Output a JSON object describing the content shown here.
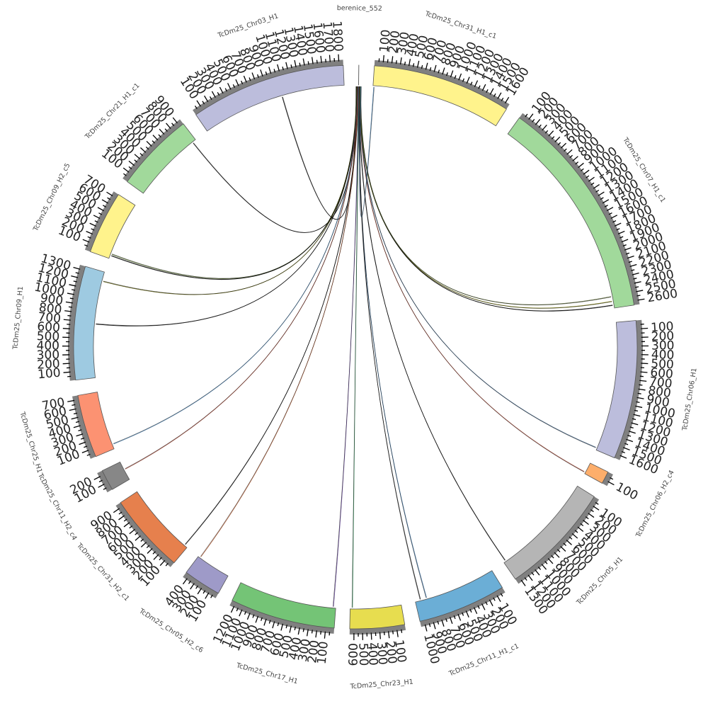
{
  "colors": {
    "tick": "#000000",
    "ring": "#808080",
    "link_default": "#000000"
  },
  "segments": [
    {
      "name": "berenice_552",
      "length": 1,
      "color": "#8da0cb"
    },
    {
      "name": "TcDm25_Chr31_H1_c1",
      "length": 1650,
      "color": "#fff38c"
    },
    {
      "name": "TcDm25_Chr07_H1_c1",
      "length": 2650,
      "color": "#a1d99b"
    },
    {
      "name": "TcDm25_Chr06_H1",
      "length": 1650,
      "color": "#bcbddc"
    },
    {
      "name": "TcDm25_Chr06_H2_c4",
      "length": 150,
      "color": "#fdae6b"
    },
    {
      "name": "TcDm25_Chr05_H1",
      "length": 1350,
      "color": "#b5b5b5"
    },
    {
      "name": "TcDm25_Chr11_H1_c1",
      "length": 1050,
      "color": "#6baed6"
    },
    {
      "name": "TcDm25_Chr23_H1",
      "length": 650,
      "color": "#e7dd4f"
    },
    {
      "name": "TcDm25_Chr17_H1",
      "length": 1250,
      "color": "#74c476"
    },
    {
      "name": "TcDm25_Chr05_H2_c6",
      "length": 450,
      "color": "#9e9ac8"
    },
    {
      "name": "TcDm25_Chr31_H2_c1",
      "length": 950,
      "color": "#e6804d"
    },
    {
      "name": "TcDm25_Chr11_H2_c4",
      "length": 250,
      "color": "#878787"
    },
    {
      "name": "TcDm25_Chr25_H1",
      "length": 750,
      "color": "#fc9272"
    },
    {
      "name": "TcDm25_Chr09_H1",
      "length": 1350,
      "color": "#9ecae1"
    },
    {
      "name": "TcDm25_Chr09_H2_c5",
      "length": 750,
      "color": "#fff38c"
    },
    {
      "name": "TcDm25_Chr21_H1_c1",
      "length": 950,
      "color": "#a1d99b"
    },
    {
      "name": "TcDm25_Chr03_H1",
      "length": 1850,
      "color": "#bcbddc"
    }
  ],
  "links": [
    {
      "target": "TcDm25_Chr03_H1",
      "pos": 1050,
      "color": "#000000"
    },
    {
      "target": "TcDm25_Chr21_H1_c1",
      "pos": 900,
      "color": "#000000"
    },
    {
      "target": "TcDm25_Chr09_H2_c5",
      "pos": 60,
      "color": "#556b2f"
    },
    {
      "target": "TcDm25_Chr09_H2_c5",
      "pos": 40,
      "color": "#000000"
    },
    {
      "target": "TcDm25_Chr09_H1",
      "pos": 1230,
      "color": "#4a4a00"
    },
    {
      "target": "TcDm25_Chr09_H1",
      "pos": 680,
      "color": "#000000"
    },
    {
      "target": "TcDm25_Chr25_H1",
      "pos": 60,
      "color": "#3a6d99"
    },
    {
      "target": "TcDm25_Chr11_H2_c4",
      "pos": 140,
      "color": "#8b3a2a"
    },
    {
      "target": "TcDm25_Chr31_H2_c1",
      "pos": 40,
      "color": "#000000"
    },
    {
      "target": "TcDm25_Chr05_H2_c6",
      "pos": 420,
      "color": "#a0522d"
    },
    {
      "target": "TcDm25_Chr17_H1",
      "pos": 30,
      "color": "#5a3d8a"
    },
    {
      "target": "TcDm25_Chr23_H1",
      "pos": 620,
      "color": "#2e7d4f"
    },
    {
      "target": "TcDm25_Chr11_H1_c1",
      "pos": 900,
      "color": "#2b5c8a"
    },
    {
      "target": "TcDm25_Chr11_H1_c1",
      "pos": 980,
      "color": "#1c1c1c"
    },
    {
      "target": "TcDm25_Chr05_H1",
      "pos": 1320,
      "color": "#000000"
    },
    {
      "target": "TcDm25_Chr06_H2_c4",
      "pos": 130,
      "color": "#8b3a2a"
    },
    {
      "target": "TcDm25_Chr06_H1",
      "pos": 1620,
      "color": "#2e4d6b"
    },
    {
      "target": "TcDm25_Chr07_H1_c1",
      "pos": 2560,
      "color": "#6b6b00"
    },
    {
      "target": "TcDm25_Chr07_H1_c1",
      "pos": 2610,
      "color": "#000000"
    },
    {
      "target": "TcDm25_Chr07_H1_c1",
      "pos": 2500,
      "color": "#4d5a2a"
    },
    {
      "target": "TcDm25_Chr31_H1_c1",
      "pos": 10,
      "color": "#3a6d99"
    }
  ]
}
